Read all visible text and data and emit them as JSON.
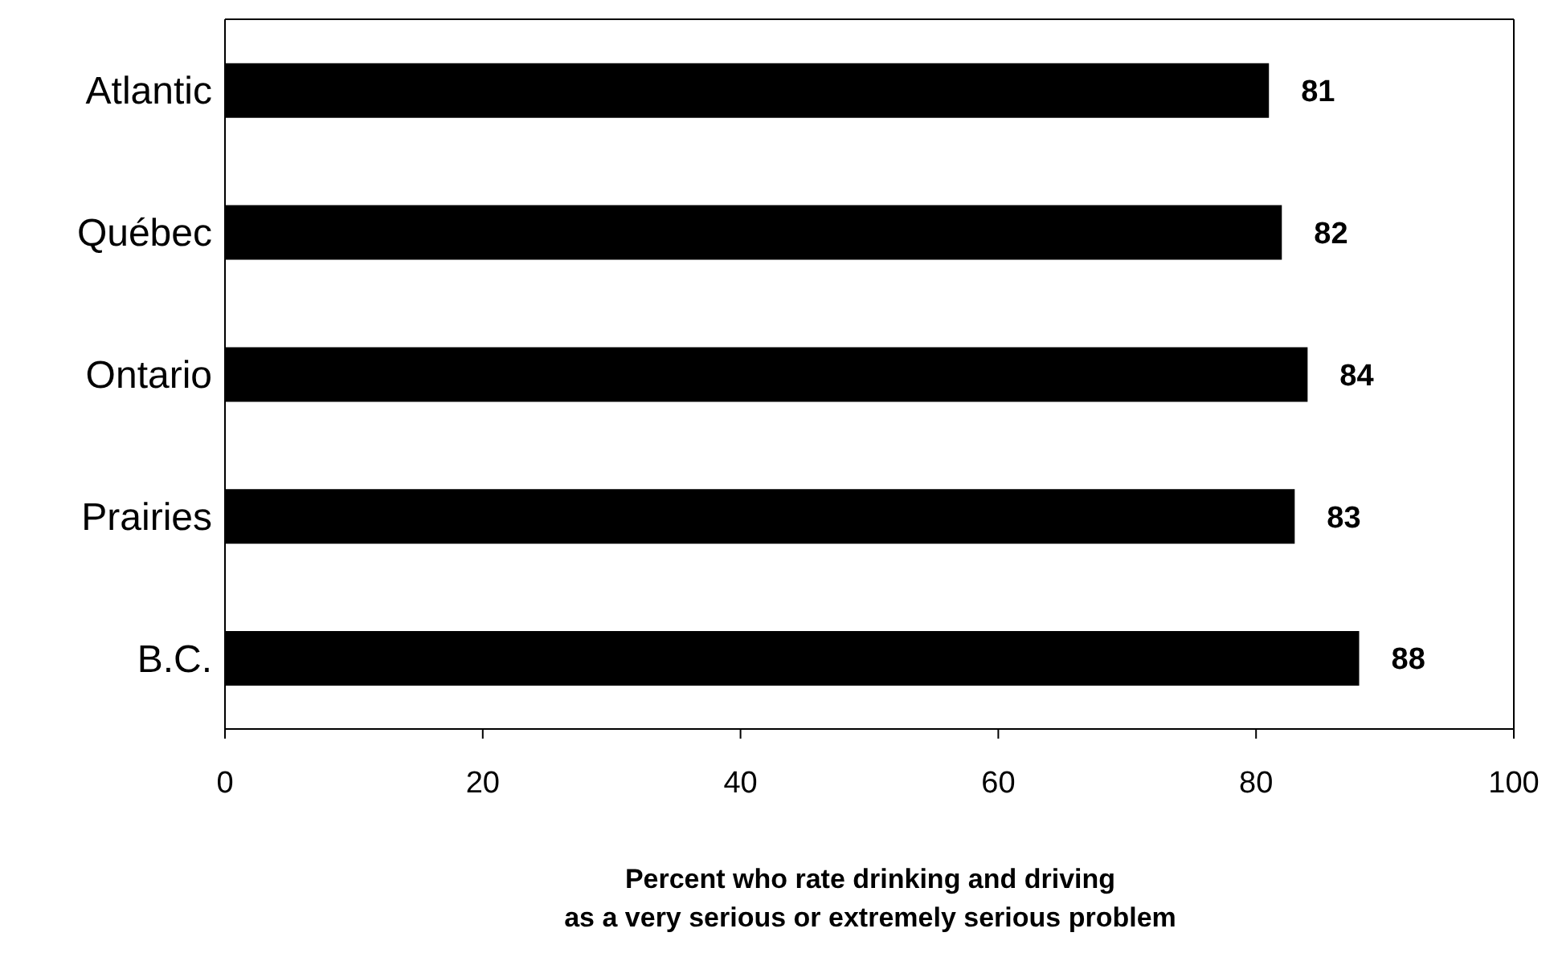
{
  "chart_data": {
    "type": "bar",
    "orientation": "horizontal",
    "categories": [
      "Atlantic",
      "Québec",
      "Ontario",
      "Prairies",
      "B.C."
    ],
    "values": [
      81,
      82,
      84,
      83,
      88
    ],
    "color": "#000000",
    "xlim": [
      0,
      100
    ],
    "xticks": [
      0,
      20,
      40,
      60,
      80,
      100
    ],
    "data_labels": true,
    "xlabel": "Percent who rate drinking and driving\nas a very serious or extremely serious problem"
  }
}
